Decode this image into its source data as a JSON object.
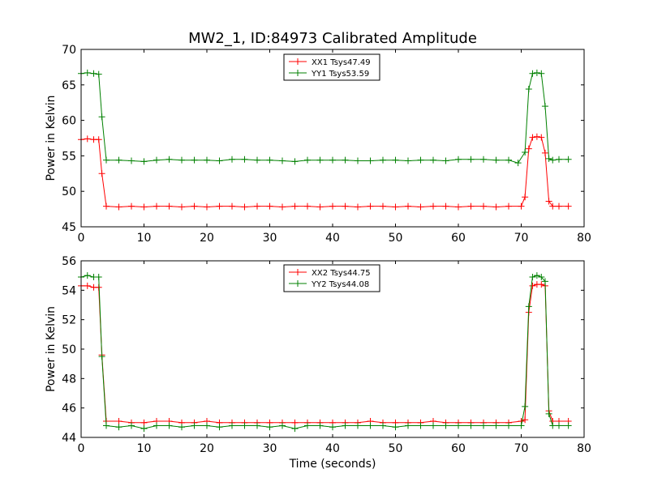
{
  "title": "MW2_1, ID:84973 Calibrated Amplitude",
  "chart_data": [
    {
      "type": "line",
      "xlabel": "",
      "ylabel": "Power in Kelvin",
      "xlim": [
        0,
        80
      ],
      "ylim": [
        45,
        70
      ],
      "xticks": [
        "0",
        "10",
        "20",
        "30",
        "40",
        "50",
        "60",
        "70",
        "80"
      ],
      "yticks": [
        "45",
        "50",
        "55",
        "60",
        "65",
        "70"
      ],
      "legend_position": "top-center",
      "grid": false,
      "series": [
        {
          "name": "XX1 Tsys47.49",
          "color": "#ff0000",
          "x": [
            0,
            1,
            2,
            2.8,
            3.3,
            4,
            6,
            8,
            10,
            12,
            14,
            16,
            18,
            20,
            22,
            24,
            26,
            28,
            30,
            32,
            34,
            36,
            38,
            40,
            42,
            44,
            46,
            48,
            50,
            52,
            54,
            56,
            58,
            60,
            62,
            64,
            66,
            68,
            70,
            70.6,
            71.2,
            71.8,
            72.5,
            73.2,
            73.8,
            74.4,
            75,
            76,
            77.5
          ],
          "y": [
            57.3,
            57.4,
            57.3,
            57.3,
            52.5,
            47.9,
            47.8,
            47.9,
            47.8,
            47.9,
            47.9,
            47.8,
            47.9,
            47.8,
            47.9,
            47.9,
            47.8,
            47.9,
            47.9,
            47.8,
            47.9,
            47.9,
            47.8,
            47.9,
            47.9,
            47.8,
            47.9,
            47.9,
            47.8,
            47.9,
            47.8,
            47.9,
            47.9,
            47.8,
            47.9,
            47.9,
            47.8,
            47.9,
            47.9,
            49.2,
            56.0,
            57.6,
            57.7,
            57.6,
            55.4,
            48.6,
            47.9,
            47.9,
            47.9
          ]
        },
        {
          "name": "YY1 Tsys53.59",
          "color": "#008000",
          "x": [
            0,
            1,
            2,
            2.8,
            3.3,
            4,
            6,
            8,
            10,
            12,
            14,
            16,
            18,
            20,
            22,
            24,
            26,
            28,
            30,
            32,
            34,
            36,
            38,
            40,
            42,
            44,
            46,
            48,
            50,
            52,
            54,
            56,
            58,
            60,
            62,
            64,
            66,
            68,
            69.5,
            70.6,
            71.2,
            71.8,
            72.5,
            73.2,
            73.8,
            74.4,
            75,
            76,
            77.5
          ],
          "y": [
            66.6,
            66.7,
            66.6,
            66.5,
            60.5,
            54.4,
            54.4,
            54.3,
            54.2,
            54.4,
            54.5,
            54.4,
            54.4,
            54.4,
            54.3,
            54.5,
            54.5,
            54.4,
            54.4,
            54.3,
            54.2,
            54.4,
            54.4,
            54.4,
            54.4,
            54.3,
            54.3,
            54.4,
            54.4,
            54.3,
            54.4,
            54.4,
            54.3,
            54.5,
            54.5,
            54.5,
            54.4,
            54.4,
            54.0,
            55.5,
            64.4,
            66.6,
            66.7,
            66.6,
            62.0,
            54.6,
            54.4,
            54.5,
            54.5
          ]
        }
      ]
    },
    {
      "type": "line",
      "xlabel": "Time (seconds)",
      "ylabel": "Power in Kelvin",
      "xlim": [
        0,
        80
      ],
      "ylim": [
        44,
        56
      ],
      "xticks": [
        "0",
        "10",
        "20",
        "30",
        "40",
        "50",
        "60",
        "70",
        "80"
      ],
      "yticks": [
        "44",
        "46",
        "48",
        "50",
        "52",
        "54",
        "56"
      ],
      "legend_position": "top-center",
      "grid": false,
      "series": [
        {
          "name": "XX2 Tsys44.75",
          "color": "#ff0000",
          "x": [
            0,
            1,
            2,
            2.8,
            3.3,
            4,
            6,
            8,
            10,
            12,
            14,
            16,
            18,
            20,
            22,
            24,
            26,
            28,
            30,
            32,
            34,
            36,
            38,
            40,
            42,
            44,
            46,
            48,
            50,
            52,
            54,
            56,
            58,
            60,
            62,
            64,
            66,
            68,
            70,
            70.6,
            71.2,
            71.8,
            72.5,
            73.2,
            73.8,
            74.4,
            75,
            76,
            77.5
          ],
          "y": [
            54.3,
            54.3,
            54.2,
            54.2,
            49.6,
            45.1,
            45.1,
            45.0,
            45.0,
            45.1,
            45.1,
            45.0,
            45.0,
            45.1,
            45.0,
            45.0,
            45.0,
            45.0,
            45.0,
            45.0,
            45.0,
            45.0,
            45.0,
            45.0,
            45.0,
            45.0,
            45.1,
            45.0,
            45.0,
            45.0,
            45.0,
            45.1,
            45.0,
            45.0,
            45.0,
            45.0,
            45.0,
            45.0,
            45.1,
            45.2,
            52.5,
            54.3,
            54.4,
            54.4,
            54.3,
            45.8,
            45.1,
            45.1,
            45.1
          ]
        },
        {
          "name": "YY2 Tsys44.08",
          "color": "#008000",
          "x": [
            0,
            1,
            2,
            2.8,
            3.3,
            4,
            6,
            8,
            10,
            12,
            14,
            16,
            18,
            20,
            22,
            24,
            26,
            28,
            30,
            32,
            34,
            36,
            38,
            40,
            42,
            44,
            46,
            48,
            50,
            52,
            54,
            56,
            58,
            60,
            62,
            64,
            66,
            68,
            70,
            70.6,
            71.2,
            71.8,
            72.5,
            73.2,
            73.8,
            74.4,
            75,
            76,
            77.5
          ],
          "y": [
            54.9,
            55.0,
            54.9,
            54.9,
            49.5,
            44.8,
            44.7,
            44.8,
            44.6,
            44.8,
            44.8,
            44.7,
            44.8,
            44.8,
            44.7,
            44.8,
            44.8,
            44.8,
            44.7,
            44.8,
            44.6,
            44.8,
            44.8,
            44.7,
            44.8,
            44.8,
            44.8,
            44.8,
            44.7,
            44.8,
            44.8,
            44.8,
            44.8,
            44.8,
            44.8,
            44.8,
            44.8,
            44.8,
            44.8,
            46.1,
            52.9,
            54.9,
            55.0,
            54.9,
            54.6,
            45.6,
            44.8,
            44.8,
            44.8
          ]
        }
      ]
    }
  ]
}
